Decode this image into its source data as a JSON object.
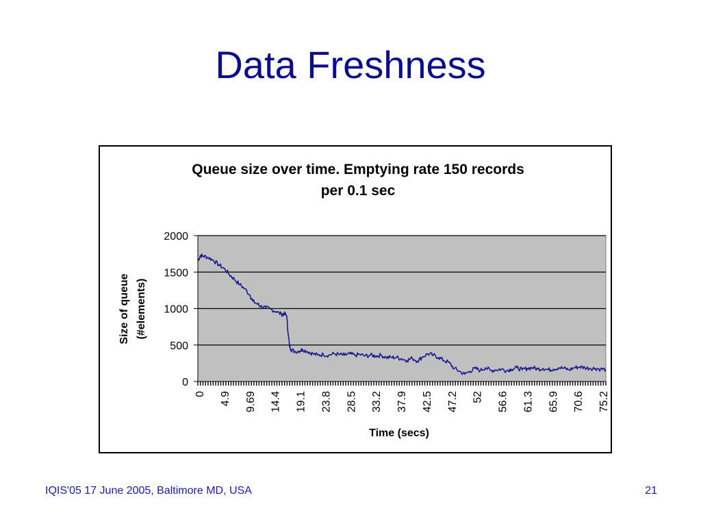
{
  "slide": {
    "title": "Data Freshness",
    "footer": "IQIS'05 17 June 2005, Baltimore MD, USA",
    "page_number": "21"
  },
  "colors": {
    "title": "#0d0d8c",
    "footer": "#1a1aa6",
    "plot_background": "#c0c0c0",
    "series_line": "#1a1a8c",
    "gridline": "#000000"
  },
  "chart_data": {
    "type": "line",
    "title_lines": [
      "Queue size over time. Emptying rate 150 records",
      "per 0.1 sec"
    ],
    "xlabel": "Time  (secs)",
    "ylabel_lines": [
      "Size of queue",
      "(#elements)"
    ],
    "ylim": [
      0,
      2000
    ],
    "yticks": [
      "0",
      "500",
      "1000",
      "1500",
      "2000"
    ],
    "xlim": [
      0,
      78
    ],
    "xtick_labels": [
      "0",
      "4.9",
      "9.69",
      "14.4",
      "19.1",
      "23.8",
      "28.5",
      "33.2",
      "37.9",
      "42.5",
      "47.2",
      "52",
      "56.6",
      "61.3",
      "65.9",
      "70.6",
      "75.2"
    ],
    "grid": "horizontal",
    "legend": "none",
    "series": [
      {
        "points": [
          [
            0,
            1650
          ],
          [
            0.5,
            1730
          ],
          [
            1,
            1720
          ],
          [
            2,
            1700
          ],
          [
            3,
            1660
          ],
          [
            4,
            1600
          ],
          [
            5,
            1550
          ],
          [
            6,
            1470
          ],
          [
            7,
            1400
          ],
          [
            8,
            1330
          ],
          [
            9,
            1270
          ],
          [
            10,
            1180
          ],
          [
            10.5,
            1100
          ],
          [
            11.5,
            1060
          ],
          [
            12,
            1030
          ],
          [
            13,
            1010
          ],
          [
            14,
            990
          ],
          [
            15,
            960
          ],
          [
            16,
            920
          ],
          [
            16.5,
            930
          ],
          [
            17,
            900
          ],
          [
            17.2,
            700
          ],
          [
            17.5,
            500
          ],
          [
            17.8,
            440
          ],
          [
            18.5,
            410
          ],
          [
            19.5,
            420
          ],
          [
            20,
            440
          ],
          [
            21,
            410
          ],
          [
            22,
            380
          ],
          [
            23,
            360
          ],
          [
            24,
            370
          ],
          [
            25,
            360
          ],
          [
            26,
            380
          ],
          [
            27,
            370
          ],
          [
            28,
            360
          ],
          [
            29,
            380
          ],
          [
            30,
            360
          ],
          [
            31,
            370
          ],
          [
            32,
            350
          ],
          [
            33,
            360
          ],
          [
            34,
            350
          ],
          [
            35,
            360
          ],
          [
            36,
            330
          ],
          [
            37,
            330
          ],
          [
            38,
            330
          ],
          [
            39,
            310
          ],
          [
            40,
            290
          ],
          [
            41,
            320
          ],
          [
            42,
            280
          ],
          [
            43,
            340
          ],
          [
            44,
            380
          ],
          [
            45,
            360
          ],
          [
            46,
            330
          ],
          [
            47,
            290
          ],
          [
            48,
            260
          ],
          [
            49,
            180
          ],
          [
            50,
            140
          ],
          [
            51,
            100
          ],
          [
            52,
            140
          ],
          [
            53,
            180
          ],
          [
            54,
            150
          ],
          [
            55,
            190
          ],
          [
            56,
            150
          ],
          [
            57,
            160
          ],
          [
            58,
            170
          ],
          [
            59,
            150
          ],
          [
            60,
            170
          ],
          [
            61,
            190
          ],
          [
            62,
            160
          ],
          [
            63,
            180
          ],
          [
            64,
            190
          ],
          [
            65,
            170
          ],
          [
            66,
            180
          ],
          [
            67,
            160
          ],
          [
            68,
            170
          ],
          [
            69,
            190
          ],
          [
            70,
            180
          ],
          [
            71,
            160
          ],
          [
            72,
            190
          ],
          [
            73,
            200
          ],
          [
            74,
            190
          ],
          [
            75,
            180
          ],
          [
            76,
            180
          ],
          [
            77,
            170
          ],
          [
            78,
            165
          ]
        ]
      }
    ]
  }
}
